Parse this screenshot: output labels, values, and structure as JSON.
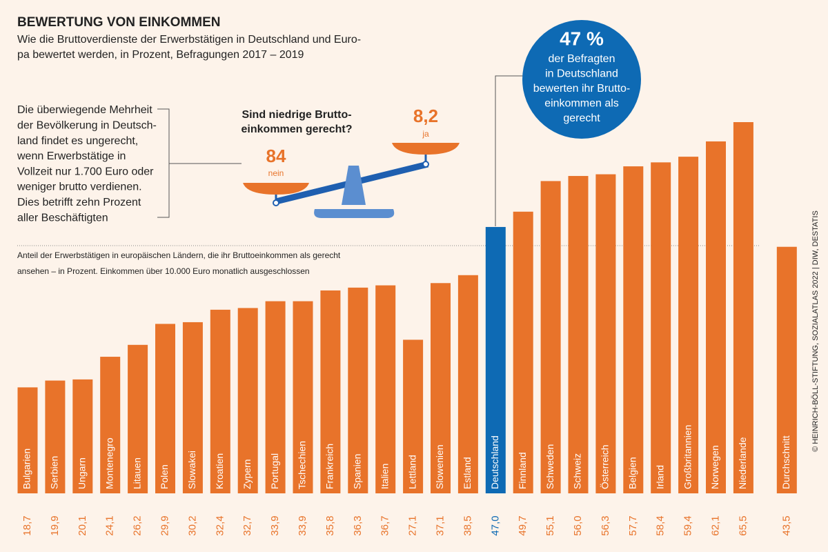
{
  "header": {
    "title": "BEWERTUNG VON EINKOMMEN",
    "subtitle": [
      "Wie die Bruttoverdienste der Erwerbstätigen in Deutschland und Euro-",
      "pa bewertet werden, in Prozent, Befragungen 2017 – 2019"
    ]
  },
  "annotation": [
    "Die überwiegende Mehrheit",
    "der Bevölkerung in Deutsch-",
    "land findet es ungerecht,",
    "wenn Erwerbstätige in",
    "Vollzeit nur 1.700 Euro oder",
    "weniger brutto verdienen.",
    "Dies betrifft zehn Prozent",
    "aller Beschäftigten"
  ],
  "scale": {
    "question": [
      "Sind niedrige Brutto-",
      "einkommen gerecht?"
    ],
    "no": {
      "value": 84,
      "label": "nein"
    },
    "yes": {
      "value": 8.2,
      "value_label": "8,2",
      "label": "ja"
    }
  },
  "bubble": {
    "headline": "47 %",
    "lines": [
      "der Befragten",
      "in Deutschland",
      "bewerten ihr Brutto-",
      "einkommen als",
      "gerecht"
    ]
  },
  "source": "© HEINRICH-BÖLL-STIFTUNG, SOZIALATLAS 2022 | DIW, DESTATIS",
  "chart_data": {
    "type": "bar",
    "note": [
      "Anteil der Erwerbstätigen in europäischen Ländern, die ihr Bruttoeinkommen als gerecht",
      "ansehen – in Prozent. Einkommen über 10.000 Euro monatlich ausgeschlossen"
    ],
    "categories": [
      "Bulgarien",
      "Serbien",
      "Ungarn",
      "Montenegro",
      "Litauen",
      "Polen",
      "Slowakei",
      "Kroatien",
      "Zypern",
      "Portugal",
      "Tschechien",
      "Frankreich",
      "Spanien",
      "Italien",
      "Lettland",
      "Slowenien",
      "Estland",
      "Deutschland",
      "Finnland",
      "Schweden",
      "Schweiz",
      "Österreich",
      "Belgien",
      "Irland",
      "Großbritannien",
      "Norwegen",
      "Niederlande",
      "Durchschnitt"
    ],
    "values": [
      18.7,
      19.9,
      20.1,
      24.1,
      26.2,
      29.9,
      30.2,
      32.4,
      32.7,
      33.9,
      33.9,
      35.8,
      36.3,
      36.7,
      27.1,
      37.1,
      38.5,
      47.0,
      49.7,
      55.1,
      56.0,
      56.3,
      57.7,
      58.4,
      59.4,
      62.1,
      65.5,
      43.5
    ],
    "value_labels": [
      "18,7",
      "19,9",
      "20,1",
      "24,1",
      "26,2",
      "29,9",
      "30,2",
      "32,4",
      "32,7",
      "33,9",
      "33,9",
      "35,8",
      "36,3",
      "36,7",
      "27,1",
      "37,1",
      "38,5",
      "47,0",
      "49,7",
      "55,1",
      "56,0",
      "56,3",
      "57,7",
      "58,4",
      "59,4",
      "62,1",
      "65,5",
      "43,5"
    ],
    "colors": [
      "#e8732a",
      "#e8732a",
      "#e8732a",
      "#e8732a",
      "#e8732a",
      "#e8732a",
      "#e8732a",
      "#e8732a",
      "#e8732a",
      "#e8732a",
      "#e8732a",
      "#e8732a",
      "#e8732a",
      "#e8732a",
      "#e8732a",
      "#e8732a",
      "#e8732a",
      "#0e6ab4",
      "#e8732a",
      "#e8732a",
      "#e8732a",
      "#e8732a",
      "#e8732a",
      "#e8732a",
      "#e8732a",
      "#e8732a",
      "#e8732a",
      "#e8732a"
    ]
  }
}
